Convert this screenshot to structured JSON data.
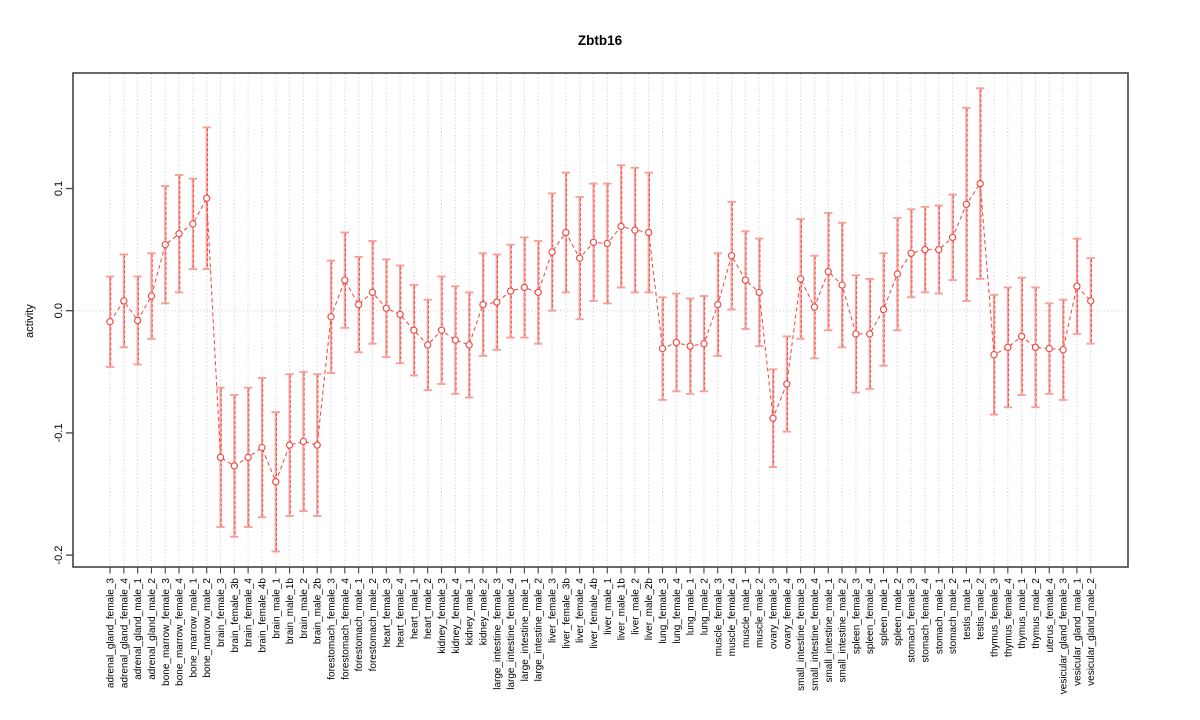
{
  "figure": {
    "title": "Zbtb16",
    "ylabel": "activity"
  },
  "chart_data": {
    "type": "line",
    "subtype": "points-with-symmetric-error-bars-and-dashed-connecting-line",
    "title": "Zbtb16",
    "xlabel": "",
    "ylabel": "activity",
    "ylim": [
      -0.21,
      0.195
    ],
    "yticks": [
      0.1,
      0.0,
      -0.1,
      -0.2
    ],
    "ytick_labels": [
      "0.1",
      "0.0",
      "-0.1",
      "-0.2"
    ],
    "grid": {
      "vertical_dotted_per_category": true,
      "horizontal_dotted_at_zero": true
    },
    "legend": "none",
    "colors": {
      "series": "#f04a41",
      "error_bar": "#f6a09b",
      "grid": "#c9c9c9",
      "frame": "#444444",
      "text": "#000000",
      "background": "#ffffff"
    },
    "categories": [
      "adrenal_gland_female_3",
      "adrenal_gland_female_4",
      "adrenal_gland_male_1",
      "adrenal_gland_male_2",
      "bone_marrow_female_3",
      "bone_marrow_female_4",
      "bone_marrow_male_1",
      "bone_marrow_male_2",
      "brain_female_3",
      "brain_female_3b",
      "brain_female_4",
      "brain_female_4b",
      "brain_male_1",
      "brain_male_1b",
      "brain_male_2",
      "brain_male_2b",
      "forestomach_female_3",
      "forestomach_female_4",
      "forestomach_male_1",
      "forestomach_male_2",
      "heart_female_3",
      "heart_female_4",
      "heart_male_1",
      "heart_male_2",
      "kidney_female_3",
      "kidney_female_4",
      "kidney_male_1",
      "kidney_male_2",
      "large_intestine_female_3",
      "large_intestine_female_4",
      "large_intestine_male_1",
      "large_intestine_male_2",
      "liver_female_3",
      "liver_female_3b",
      "liver_female_4",
      "liver_female_4b",
      "liver_male_1",
      "liver_male_1b",
      "liver_male_2",
      "liver_male_2b",
      "lung_female_3",
      "lung_female_4",
      "lung_male_1",
      "lung_male_2",
      "muscle_female_3",
      "muscle_female_4",
      "muscle_male_1",
      "muscle_male_2",
      "ovary_female_3",
      "ovary_female_4",
      "small_intestine_female_3",
      "small_intestine_female_4",
      "small_intestine_male_1",
      "small_intestine_male_2",
      "spleen_female_3",
      "spleen_female_4",
      "spleen_male_1",
      "spleen_male_2",
      "stomach_female_3",
      "stomach_female_4",
      "stomach_male_1",
      "stomach_male_2",
      "testis_male_1",
      "testis_male_2",
      "thymus_female_3",
      "thymus_female_4",
      "thymus_male_1",
      "thymus_male_2",
      "uterus_female_4",
      "vesicular_gland_female_3",
      "vesicular_gland_male_1",
      "vesicular_gland_male_2"
    ],
    "series": [
      {
        "name": "activity",
        "values": [
          -0.009,
          0.008,
          -0.008,
          0.012,
          0.054,
          0.063,
          0.071,
          0.092,
          -0.12,
          -0.127,
          -0.12,
          -0.112,
          -0.14,
          -0.11,
          -0.107,
          -0.11,
          -0.005,
          0.025,
          0.005,
          0.015,
          0.002,
          -0.003,
          -0.016,
          -0.028,
          -0.016,
          -0.024,
          -0.028,
          0.005,
          0.007,
          0.016,
          0.019,
          0.015,
          0.048,
          0.064,
          0.043,
          0.056,
          0.055,
          0.069,
          0.066,
          0.064,
          -0.031,
          -0.026,
          -0.029,
          -0.027,
          0.005,
          0.045,
          0.025,
          0.015,
          -0.088,
          -0.06,
          0.026,
          0.003,
          0.032,
          0.021,
          -0.019,
          -0.019,
          0.001,
          0.03,
          0.047,
          0.05,
          0.05,
          0.06,
          0.087,
          0.104,
          -0.036,
          -0.03,
          -0.021,
          -0.03,
          -0.031,
          -0.032,
          0.02,
          0.008
        ],
        "ci_halfwidth": [
          0.037,
          0.038,
          0.036,
          0.035,
          0.048,
          0.048,
          0.037,
          0.058,
          0.057,
          0.058,
          0.057,
          0.057,
          0.057,
          0.058,
          0.057,
          0.058,
          0.046,
          0.039,
          0.039,
          0.042,
          0.04,
          0.04,
          0.037,
          0.037,
          0.044,
          0.044,
          0.043,
          0.042,
          0.039,
          0.038,
          0.041,
          0.042,
          0.048,
          0.049,
          0.05,
          0.048,
          0.049,
          0.05,
          0.051,
          0.049,
          0.042,
          0.04,
          0.039,
          0.039,
          0.042,
          0.044,
          0.04,
          0.044,
          0.04,
          0.039,
          0.049,
          0.042,
          0.048,
          0.051,
          0.048,
          0.045,
          0.046,
          0.046,
          0.036,
          0.035,
          0.036,
          0.035,
          0.079,
          0.078,
          0.049,
          0.049,
          0.048,
          0.049,
          0.037,
          0.041,
          0.039,
          0.035
        ]
      }
    ]
  }
}
